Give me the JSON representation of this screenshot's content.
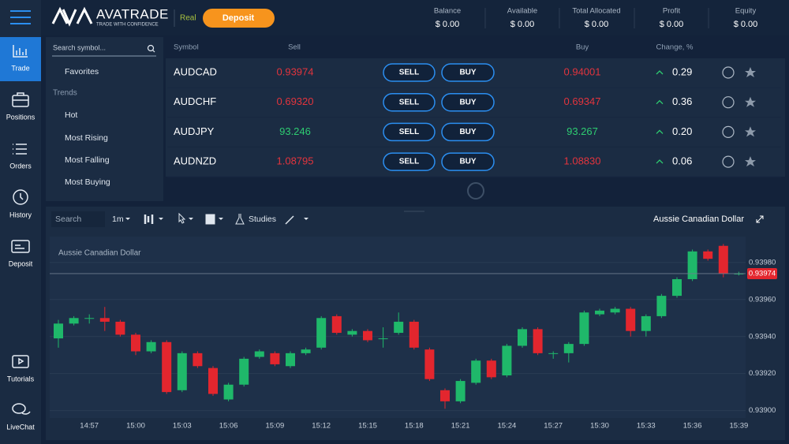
{
  "header": {
    "logo": "AVATRADE",
    "tagline": "TRADE WITH CONFIDENCE",
    "account": "Real",
    "deposit": "Deposit",
    "stats": [
      {
        "label": "Balance",
        "value": "$ 0.00"
      },
      {
        "label": "Available",
        "value": "$ 0.00"
      },
      {
        "label": "Total Allocated",
        "value": "$ 0.00"
      },
      {
        "label": "Profit",
        "value": "$ 0.00"
      },
      {
        "label": "Equity",
        "value": "$ 0.00"
      }
    ]
  },
  "sidebar": {
    "items": [
      "Trade",
      "Positions",
      "Orders",
      "History",
      "Deposit",
      "Tutorials",
      "LiveChat"
    ]
  },
  "symbols_panel": {
    "search": "Search symbol...",
    "favorites": "Favorites",
    "section": "Trends",
    "trends": [
      "Hot",
      "Most Rising",
      "Most Falling",
      "Most Buying"
    ]
  },
  "quotes": {
    "headers": [
      "Symbol",
      "Sell",
      "Buy",
      "Change, %"
    ],
    "sell_button": "SELL",
    "buy_button": "BUY",
    "rows": [
      {
        "symbol": "AUDCAD",
        "sell": "0.93974",
        "buy": "0.94001",
        "change": "0.29"
      },
      {
        "symbol": "AUDCHF",
        "sell": "0.69320",
        "buy": "0.69347",
        "change": "0.36"
      },
      {
        "symbol": "AUDJPY",
        "sell": "93.246",
        "buy": "93.267",
        "change": "0.20"
      },
      {
        "symbol": "AUDNZD",
        "sell": "1.08795",
        "buy": "1.08830",
        "change": "0.06"
      }
    ]
  },
  "toolbar": {
    "search": "Search",
    "interval": "1m",
    "studies": "Studies",
    "symbol_name": "Aussie Canadian Dollar"
  },
  "chart_data": {
    "type": "candlestick",
    "title": "Aussie Canadian Dollar",
    "up_color": "#1fb86a",
    "down_color": "#e3262e",
    "categories": [
      null,
      null,
      "14:57",
      null,
      null,
      "15:00",
      null,
      null,
      "15:03",
      null,
      null,
      "15:06",
      null,
      null,
      "15:09",
      null,
      null,
      "15:12",
      null,
      null,
      "15:15",
      null,
      null,
      "15:18",
      null,
      null,
      "15:21",
      null,
      null,
      "15:24",
      null,
      null,
      "15:27",
      null,
      null,
      "15:30",
      null,
      null,
      "15:33",
      null,
      null,
      "15:36",
      null,
      null,
      "15:39"
    ],
    "open": [
      0.93939,
      0.93947,
      0.9395,
      0.9395,
      0.93948,
      0.93941,
      0.93932,
      0.93937,
      0.93911,
      0.93931,
      0.93923,
      0.93906,
      0.93914,
      0.93929,
      0.93931,
      0.93924,
      0.93931,
      0.93934,
      0.93951,
      0.93941,
      0.93943,
      0.93939,
      0.93942,
      0.93948,
      0.93933,
      0.93911,
      0.93905,
      0.93915,
      0.93927,
      0.93919,
      0.93935,
      0.93944,
      0.93931,
      0.93931,
      0.93936,
      0.93952,
      0.93953,
      0.93955,
      0.93943,
      0.93951,
      0.93962,
      0.93971,
      0.93986,
      0.93989,
      0.93974
    ],
    "high": [
      0.93949,
      0.93951,
      0.93952,
      0.93956,
      0.93949,
      0.93942,
      0.93938,
      0.93938,
      0.93932,
      0.93932,
      0.93924,
      0.93915,
      0.93929,
      0.93933,
      0.93932,
      0.93932,
      0.93934,
      0.93951,
      0.93952,
      0.93944,
      0.93944,
      0.93945,
      0.93953,
      0.93949,
      0.93934,
      0.93912,
      0.93917,
      0.93928,
      0.93928,
      0.93936,
      0.93945,
      0.93945,
      0.93932,
      0.93937,
      0.93954,
      0.93955,
      0.93956,
      0.93956,
      0.93952,
      0.93963,
      0.93972,
      0.93987,
      0.93987,
      0.9399,
      0.93975
    ],
    "low": [
      0.93934,
      0.93946,
      0.93947,
      0.93943,
      0.9394,
      0.9393,
      0.93931,
      0.93909,
      0.9391,
      0.93923,
      0.93908,
      0.93905,
      0.93913,
      0.93928,
      0.93924,
      0.93923,
      0.9393,
      0.93933,
      0.93941,
      0.9394,
      0.93937,
      0.93934,
      0.93941,
      0.93933,
      0.93916,
      0.93901,
      0.93904,
      0.93914,
      0.93917,
      0.93918,
      0.93934,
      0.9393,
      0.93928,
      0.93926,
      0.93935,
      0.93951,
      0.93952,
      0.9394,
      0.9394,
      0.9395,
      0.93961,
      0.9397,
      0.93981,
      0.93972,
      0.93973
    ],
    "close": [
      0.93947,
      0.9395,
      0.9395,
      0.93948,
      0.93941,
      0.93932,
      0.93937,
      0.9391,
      0.93931,
      0.93924,
      0.93909,
      0.93914,
      0.93928,
      0.93932,
      0.93925,
      0.93931,
      0.93933,
      0.9395,
      0.93942,
      0.93943,
      0.93938,
      0.93939,
      0.93948,
      0.93934,
      0.93917,
      0.93905,
      0.93916,
      0.93927,
      0.93918,
      0.93935,
      0.93944,
      0.93931,
      0.93931,
      0.93936,
      0.93953,
      0.93954,
      0.93955,
      0.93943,
      0.93951,
      0.93962,
      0.93971,
      0.93986,
      0.93982,
      0.93974,
      0.93974
    ],
    "ylim": [
      0.93896,
      0.93994
    ],
    "yticks": [
      {
        "value": 0.939,
        "label": "0.93900"
      },
      {
        "value": 0.9392,
        "label": "0.93920"
      },
      {
        "value": 0.9394,
        "label": "0.93940"
      },
      {
        "value": 0.9396,
        "label": "0.93960"
      },
      {
        "value": 0.9398,
        "label": "0.93980"
      }
    ],
    "current_price": {
      "value": 0.93974,
      "label": "0.93974"
    },
    "grid": true
  }
}
